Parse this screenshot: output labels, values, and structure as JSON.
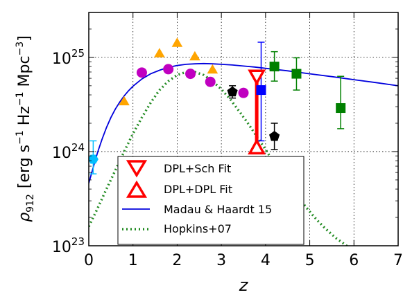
{
  "chart_data": {
    "type": "scatter",
    "xlabel": "z",
    "ylabel": "ρ912 [erg s^-1 Hz^-1 Mpc^-3]",
    "ylabel_parts": {
      "rho": "ρ",
      "sub": "912",
      "units_open": "[erg s",
      "sup1": "−1",
      "units_mid1": " Hz",
      "sup2": "−1",
      "units_mid2": " Mpc",
      "sup3": "−3",
      "units_close": "]"
    },
    "xlim": [
      0,
      7
    ],
    "ylim": [
      1e+23,
      3e+25
    ],
    "yscale": "log",
    "grid": true,
    "x_ticks": [
      "0",
      "1",
      "2",
      "3",
      "4",
      "5",
      "6",
      "7"
    ],
    "y_ticks": [
      {
        "value": 1e+23,
        "base": "10",
        "exp": "23"
      },
      {
        "value": 1e+24,
        "base": "10",
        "exp": "24"
      },
      {
        "value": 1e+25,
        "base": "10",
        "exp": "25"
      }
    ],
    "legend_position": "lower-center",
    "series": [
      {
        "name": "DPL+Sch Fit",
        "marker": "triangle-down-open",
        "color": "#ff0000",
        "points": [
          {
            "x": 3.8,
            "y": 6.3e+24
          }
        ]
      },
      {
        "name": "DPL+DPL Fit",
        "marker": "triangle-up-open",
        "color": "#ff0000",
        "points": [
          {
            "x": 3.8,
            "y": 1.1e+24
          }
        ]
      },
      {
        "name": "Madau & Haardt 15",
        "style": "line",
        "color": "#0000dd",
        "x": [
          0.0,
          0.1,
          0.2,
          0.3,
          0.4,
          0.5,
          0.6,
          0.7,
          0.8,
          0.9,
          1.0,
          1.2,
          1.4,
          1.6,
          1.8,
          2.0,
          2.2,
          2.4,
          2.6,
          2.8,
          3.0,
          3.25,
          3.5,
          3.75,
          4.0,
          4.5,
          5.0,
          5.5,
          6.0,
          6.5,
          7.0
        ],
        "y": [
          4.6e+23,
          6.8e+23,
          9.8e+23,
          1.35e+24,
          1.8e+24,
          2.3e+24,
          2.82e+24,
          3.35e+24,
          3.9e+24,
          4.42e+24,
          4.95e+24,
          5.9e+24,
          6.7e+24,
          7.3e+24,
          7.85e+24,
          8.2e+24,
          8.45e+24,
          8.55e+24,
          8.6e+24,
          8.55e+24,
          8.45e+24,
          8.3e+24,
          8.1e+24,
          7.9e+24,
          7.65e+24,
          7.2e+24,
          6.7e+24,
          6.25e+24,
          5.8e+24,
          5.4e+24,
          5e+24
        ]
      },
      {
        "name": "Hopkins+07",
        "style": "dotted",
        "color": "#228b22",
        "x": [
          0.0,
          0.2,
          0.4,
          0.6,
          0.8,
          1.0,
          1.2,
          1.4,
          1.6,
          1.8,
          2.0,
          2.2,
          2.4,
          2.6,
          2.8,
          3.0,
          3.2,
          3.4,
          3.6,
          3.8,
          4.0,
          4.2,
          4.4,
          4.6,
          4.8,
          5.0,
          5.2,
          5.4,
          5.6,
          5.8,
          6.0,
          6.2
        ],
        "y": [
          1.6e+23,
          2.5e+23,
          4e+23,
          6.3e+23,
          1e+24,
          1.55e+24,
          2.3e+24,
          3.3e+24,
          4.5e+24,
          5.6e+24,
          6.5e+24,
          7e+24,
          7e+24,
          6.5e+24,
          5.6e+24,
          4.6e+24,
          3.6e+24,
          2.7e+24,
          2e+24,
          1.45e+24,
          1.05e+24,
          7.5e+23,
          5.4e+23,
          4e+23,
          3e+23,
          2.3e+23,
          1.8e+23,
          1.45e+23,
          1.2e+23,
          1.03e+23,
          8.7e+22,
          7.6e+22
        ]
      }
    ],
    "points": [
      {
        "marker": "hexagon",
        "color": "#00bfff",
        "x": 0.1,
        "y": 8.3e+23,
        "yerr_lo": 5.8e+23,
        "yerr_hi": 1.3e+24
      },
      {
        "marker": "triangle-up",
        "color": "#ffa500",
        "x": 0.8,
        "y": 3.4e+24
      },
      {
        "marker": "triangle-up",
        "color": "#ffa500",
        "x": 1.6,
        "y": 1.1e+25
      },
      {
        "marker": "triangle-up",
        "color": "#ffa500",
        "x": 2.0,
        "y": 1.42e+25
      },
      {
        "marker": "triangle-up",
        "color": "#ffa500",
        "x": 2.4,
        "y": 1.02e+25
      },
      {
        "marker": "triangle-up",
        "color": "#ffa500",
        "x": 2.8,
        "y": 7.4e+24
      },
      {
        "marker": "circle",
        "color": "#c000c0",
        "x": 1.2,
        "y": 6.9e+24
      },
      {
        "marker": "circle",
        "color": "#c000c0",
        "x": 1.8,
        "y": 7.5e+24
      },
      {
        "marker": "circle",
        "color": "#c000c0",
        "x": 2.3,
        "y": 6.7e+24
      },
      {
        "marker": "circle",
        "color": "#c000c0",
        "x": 2.75,
        "y": 5.5e+24
      },
      {
        "marker": "circle",
        "color": "#c000c0",
        "x": 3.5,
        "y": 4.2e+24
      },
      {
        "marker": "pentagon",
        "color": "#000000",
        "x": 3.25,
        "y": 4.3e+24,
        "yerr_lo": 3.7e+24,
        "yerr_hi": 5e+24
      },
      {
        "marker": "pentagon",
        "color": "#000000",
        "x": 4.2,
        "y": 1.45e+24,
        "yerr_lo": 1.05e+24,
        "yerr_hi": 2e+24
      },
      {
        "marker": "square",
        "color": "#0000ff",
        "x": 3.9,
        "y": 4.5e+24,
        "yerr_lo": 1.3e+24,
        "yerr_hi": 1.45e+25
      },
      {
        "marker": "square",
        "color": "#008000",
        "x": 4.2,
        "y": 8e+24,
        "yerr_lo": 5.6e+24,
        "yerr_hi": 1.15e+25
      },
      {
        "marker": "square",
        "color": "#008000",
        "x": 4.7,
        "y": 6.7e+24,
        "yerr_lo": 4.5e+24,
        "yerr_hi": 9.9e+24
      },
      {
        "marker": "square",
        "color": "#008000",
        "x": 5.7,
        "y": 2.9e+24,
        "yerr_lo": 1.75e+24,
        "yerr_hi": 6.3e+24
      }
    ],
    "red_bar": {
      "x": 3.8,
      "y_low": 1.1e+24,
      "y_high": 6.3e+24,
      "color": "#ff0000"
    }
  }
}
